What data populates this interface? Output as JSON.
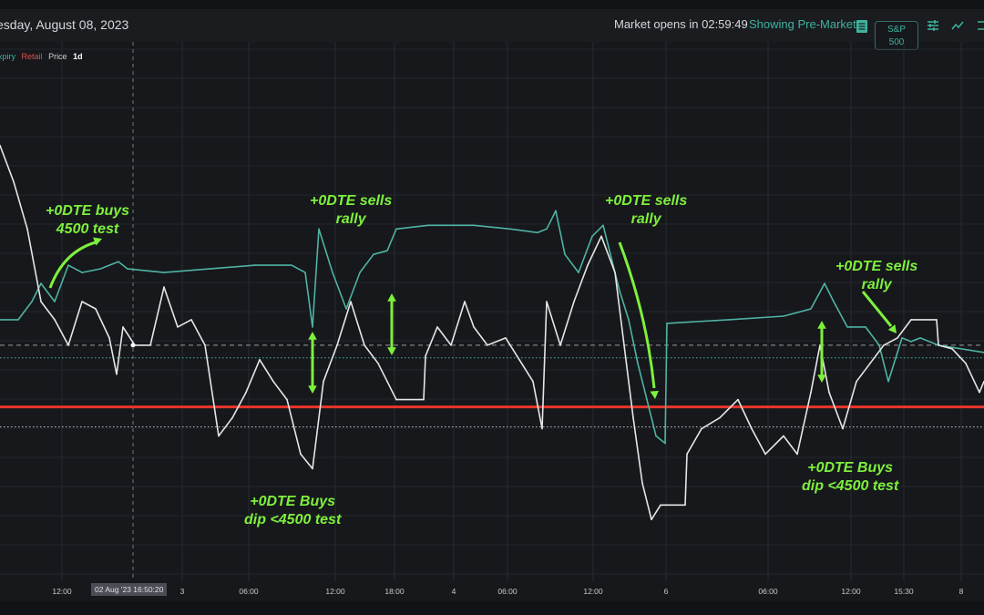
{
  "header": {
    "date": "esday, August 08, 2023",
    "market_status": "Market opens in 02:59:49",
    "session_mode": "Showing Pre-Market",
    "index_button": {
      "line1": "S&P",
      "line2": "500"
    },
    "icons": [
      "list-icon",
      "sliders-icon",
      "line-chart-icon"
    ]
  },
  "legend": {
    "expiry": "xpiry",
    "retail": "Retail",
    "price": "Price",
    "timeframe": "1d"
  },
  "crosshair_label": "02 Aug '23  16:50:20",
  "annotations": [
    {
      "line1": "+0DTE buys",
      "line2": "4500 test"
    },
    {
      "line1": "+0DTE sells",
      "line2": "rally"
    },
    {
      "line1": "+0DTE sells",
      "line2": "rally"
    },
    {
      "line1": "+0DTE sells",
      "line2": "rally"
    },
    {
      "line1": "+0DTE Buys",
      "line2": "dip <4500 test"
    },
    {
      "line1": "+0DTE Buys",
      "line2": "dip <4500 test"
    }
  ],
  "colors": {
    "price": "#e6e6e6",
    "expiry": "#4fb3a3",
    "level": "#e8362a",
    "annotation": "#7ef03c",
    "retail": "#e05050"
  },
  "chart_data": {
    "type": "line",
    "title": "",
    "xlabel": "",
    "ylabel": "",
    "xlim": [
      0,
      108
    ],
    "ylim": [
      4454,
      4602
    ],
    "grid": true,
    "x_ticks": [
      {
        "x": 6.8,
        "label": "12:00"
      },
      {
        "x": 20,
        "label": "3"
      },
      {
        "x": 27.3,
        "label": "06:00"
      },
      {
        "x": 36.8,
        "label": "12:00"
      },
      {
        "x": 43.3,
        "label": "18:00"
      },
      {
        "x": 49.8,
        "label": "4"
      },
      {
        "x": 55.7,
        "label": "06:00"
      },
      {
        "x": 65.1,
        "label": "12:00"
      },
      {
        "x": 73.1,
        "label": "6"
      },
      {
        "x": 84.3,
        "label": "06:00"
      },
      {
        "x": 93.4,
        "label": "12:00"
      },
      {
        "x": 99.2,
        "label": "15:30"
      },
      {
        "x": 105.5,
        "label": "8"
      }
    ],
    "crosshair_x": 14.6,
    "reference_lines": [
      {
        "name": "key-level-4500",
        "y": 4500,
        "style": "solid",
        "color": "#e8362a"
      },
      {
        "name": "price-last-line",
        "y": 4517,
        "style": "dashed",
        "color": "#9a9a9a"
      },
      {
        "name": "expiry-last-line",
        "y": 4513.5,
        "style": "dotted",
        "color": "#4fb3a3"
      },
      {
        "name": "lower-dotted-line",
        "y": 4494.5,
        "style": "dotted",
        "color": "#bbbbbb"
      }
    ],
    "series": [
      {
        "name": "Expiry",
        "color": "#4fb3a3",
        "points": [
          [
            0,
            4524
          ],
          [
            2,
            4524
          ],
          [
            3.5,
            4529
          ],
          [
            4.5,
            4534
          ],
          [
            6,
            4529
          ],
          [
            7.5,
            4539
          ],
          [
            9,
            4537
          ],
          [
            11,
            4538
          ],
          [
            13,
            4540
          ],
          [
            14,
            4538
          ],
          [
            18,
            4537
          ],
          [
            23,
            4538
          ],
          [
            28,
            4539
          ],
          [
            32,
            4539
          ],
          [
            33.5,
            4537
          ],
          [
            34.3,
            4522
          ],
          [
            35,
            4549
          ],
          [
            36.5,
            4537
          ],
          [
            38,
            4527
          ],
          [
            39.5,
            4537
          ],
          [
            41,
            4542
          ],
          [
            42.5,
            4543
          ],
          [
            43.5,
            4549
          ],
          [
            47,
            4550
          ],
          [
            52,
            4550
          ],
          [
            56,
            4549
          ],
          [
            59,
            4548
          ],
          [
            60,
            4549
          ],
          [
            61,
            4554
          ],
          [
            62,
            4542
          ],
          [
            63.5,
            4537
          ],
          [
            65,
            4547
          ],
          [
            66.2,
            4550
          ],
          [
            67,
            4542
          ],
          [
            68,
            4532
          ],
          [
            69,
            4524
          ],
          [
            70,
            4512
          ],
          [
            71,
            4502
          ],
          [
            72,
            4492
          ],
          [
            73,
            4490
          ],
          [
            73.2,
            4523
          ],
          [
            80,
            4524
          ],
          [
            86,
            4525
          ],
          [
            89,
            4527
          ],
          [
            90.5,
            4534
          ],
          [
            91.5,
            4529
          ],
          [
            93,
            4522
          ],
          [
            95,
            4522
          ],
          [
            96.5,
            4517
          ],
          [
            97.5,
            4507
          ],
          [
            99,
            4519
          ],
          [
            100,
            4518
          ],
          [
            101,
            4519
          ],
          [
            103,
            4517
          ],
          [
            108,
            4515
          ]
        ]
      },
      {
        "name": "Price",
        "color": "#e6e6e6",
        "points": [
          [
            0,
            4572
          ],
          [
            1.5,
            4562
          ],
          [
            3,
            4549
          ],
          [
            4.5,
            4529
          ],
          [
            6,
            4524
          ],
          [
            7.5,
            4517
          ],
          [
            9,
            4529
          ],
          [
            10.5,
            4527
          ],
          [
            12,
            4519
          ],
          [
            12.8,
            4509
          ],
          [
            13.5,
            4522
          ],
          [
            14.8,
            4517
          ],
          [
            16.5,
            4517
          ],
          [
            18,
            4533
          ],
          [
            19.5,
            4522
          ],
          [
            21,
            4524
          ],
          [
            22.5,
            4517
          ],
          [
            24,
            4492
          ],
          [
            25.5,
            4497
          ],
          [
            27,
            4504
          ],
          [
            28.5,
            4513
          ],
          [
            30,
            4507
          ],
          [
            31.5,
            4502
          ],
          [
            33,
            4487
          ],
          [
            34.3,
            4483
          ],
          [
            35.5,
            4507
          ],
          [
            37,
            4517
          ],
          [
            38.5,
            4529
          ],
          [
            40,
            4517
          ],
          [
            41.5,
            4512
          ],
          [
            42.5,
            4507
          ],
          [
            43.5,
            4502
          ],
          [
            46.5,
            4502
          ],
          [
            46.7,
            4514
          ],
          [
            48,
            4522
          ],
          [
            49.5,
            4517
          ],
          [
            51,
            4529
          ],
          [
            52,
            4522
          ],
          [
            53.5,
            4517
          ],
          [
            55.5,
            4519
          ],
          [
            57,
            4513
          ],
          [
            58.5,
            4507
          ],
          [
            59.5,
            4494
          ],
          [
            60,
            4529
          ],
          [
            61.5,
            4517
          ],
          [
            63,
            4529
          ],
          [
            64.5,
            4539
          ],
          [
            66,
            4547
          ],
          [
            67.5,
            4537
          ],
          [
            68.5,
            4517
          ],
          [
            69.5,
            4497
          ],
          [
            70.5,
            4479
          ],
          [
            71.5,
            4469
          ],
          [
            72.5,
            4473
          ],
          [
            75.2,
            4473
          ],
          [
            75.4,
            4487
          ],
          [
            77,
            4494
          ],
          [
            79,
            4497
          ],
          [
            81,
            4502
          ],
          [
            82.5,
            4494
          ],
          [
            84,
            4487
          ],
          [
            86,
            4492
          ],
          [
            87.5,
            4487
          ],
          [
            89,
            4504
          ],
          [
            90,
            4517
          ],
          [
            91,
            4504
          ],
          [
            92.5,
            4494
          ],
          [
            94,
            4507
          ],
          [
            95.5,
            4512
          ],
          [
            97,
            4517
          ],
          [
            98.5,
            4519
          ],
          [
            100,
            4524
          ],
          [
            102.8,
            4524
          ],
          [
            103,
            4517
          ],
          [
            104.5,
            4516
          ],
          [
            106,
            4512
          ],
          [
            107.5,
            4504
          ],
          [
            108,
            4507
          ]
        ]
      }
    ]
  }
}
